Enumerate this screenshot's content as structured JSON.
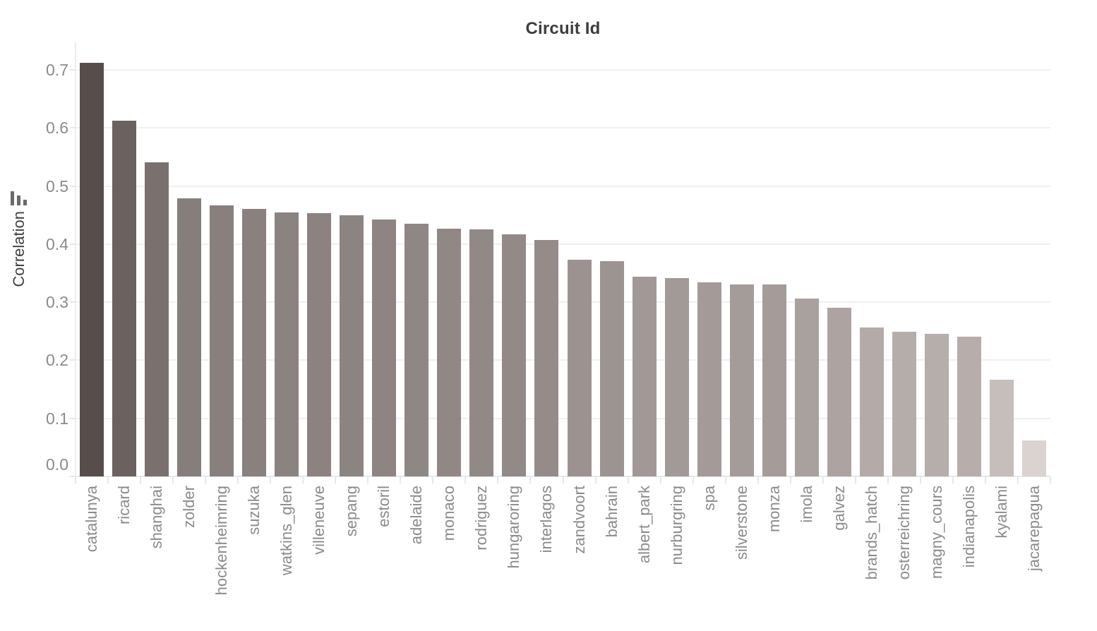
{
  "title": "Circuit Id",
  "y_axis": {
    "label": "Correlation",
    "icon": "bar-chart-icon"
  },
  "chart_data": {
    "type": "bar",
    "title": "Circuit Id",
    "xlabel": "",
    "ylabel": "Correlation",
    "ylim": [
      0,
      0.75
    ],
    "yticks": [
      0.0,
      0.1,
      0.2,
      0.3,
      0.4,
      0.5,
      0.6,
      0.7
    ],
    "grid": true,
    "legend_position": "none",
    "categories": [
      "catalunya",
      "ricard",
      "shanghai",
      "zolder",
      "hockenheimring",
      "suzuka",
      "watkins_glen",
      "villeneuve",
      "sepang",
      "estoril",
      "adelaide",
      "monaco",
      "rodriguez",
      "hungaroring",
      "interlagos",
      "zandvoort",
      "bahrain",
      "albert_park",
      "nurburgring",
      "spa",
      "silverstone",
      "monza",
      "imola",
      "galvez",
      "brands_hatch",
      "osterreichring",
      "magny_cours",
      "indianapolis",
      "kyalami",
      "jacarepagua"
    ],
    "values": [
      0.712,
      0.613,
      0.541,
      0.479,
      0.466,
      0.461,
      0.454,
      0.453,
      0.449,
      0.442,
      0.435,
      0.427,
      0.425,
      0.417,
      0.407,
      0.373,
      0.371,
      0.344,
      0.341,
      0.334,
      0.331,
      0.33,
      0.306,
      0.29,
      0.256,
      0.249,
      0.245,
      0.241,
      0.167,
      0.062
    ],
    "colors": {
      "bar_color_high": "#574e4c",
      "bar_color_low": "#dbd3cf",
      "gridline": "#f0f0f0",
      "axis_line": "#e7e7e7",
      "tick_label": "#8b8b8b",
      "title_text": "#3d3d3d",
      "icon": "#6b6b6b"
    }
  }
}
